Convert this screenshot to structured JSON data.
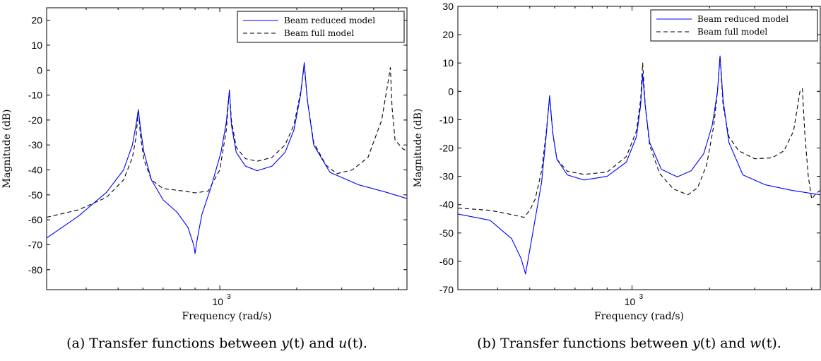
{
  "chart_data": [
    {
      "type": "line",
      "caption": {
        "prefix": "(a) Transfer functions between ",
        "var1": "y",
        "mid": "(t) and ",
        "var2": "u",
        "suffix": "(t)."
      },
      "xlabel": "Frequency (rad/s)",
      "ylabel": "Magnitude (dB)",
      "xscale": "log",
      "xlim": [
        210,
        5400
      ],
      "ylim": [
        -88,
        25
      ],
      "xticks": [
        {
          "value": 1000,
          "label": "10",
          "exponent": "3"
        }
      ],
      "yticks": [
        -80,
        -70,
        -60,
        -50,
        -40,
        -30,
        -20,
        -10,
        0,
        10,
        20
      ],
      "legend_position": "top-right",
      "series": [
        {
          "name": "Beam reduced model",
          "color": "#0000ff",
          "dash": "solid",
          "points": [
            [
              210,
              -67.3
            ],
            [
              280,
              -58.5
            ],
            [
              360,
              -49
            ],
            [
              420,
              -40
            ],
            [
              455,
              -30
            ],
            [
              470,
              -22
            ],
            [
              480,
              -15.8
            ],
            [
              490,
              -24
            ],
            [
              505,
              -33
            ],
            [
              540,
              -44
            ],
            [
              600,
              -52
            ],
            [
              680,
              -57
            ],
            [
              750,
              -63
            ],
            [
              790,
              -70
            ],
            [
              800,
              -73.5
            ],
            [
              812,
              -69
            ],
            [
              850,
              -58
            ],
            [
              930,
              -46
            ],
            [
              1010,
              -33
            ],
            [
              1060,
              -21
            ],
            [
              1090,
              -8
            ],
            [
              1110,
              -22
            ],
            [
              1160,
              -33
            ],
            [
              1260,
              -38.5
            ],
            [
              1400,
              -40.3
            ],
            [
              1600,
              -38.5
            ],
            [
              1800,
              -33
            ],
            [
              1950,
              -24
            ],
            [
              2070,
              -10
            ],
            [
              2140,
              3
            ],
            [
              2200,
              -12
            ],
            [
              2330,
              -30
            ],
            [
              2700,
              -41
            ],
            [
              3500,
              -46
            ],
            [
              4500,
              -49
            ],
            [
              5400,
              -51.5
            ]
          ]
        },
        {
          "name": "Beam full model",
          "color": "#000000",
          "dash": "dashed",
          "points": [
            [
              210,
              -59
            ],
            [
              280,
              -56
            ],
            [
              360,
              -51
            ],
            [
              420,
              -44
            ],
            [
              455,
              -35
            ],
            [
              470,
              -27
            ],
            [
              480,
              -16
            ],
            [
              490,
              -27
            ],
            [
              505,
              -36
            ],
            [
              540,
              -44
            ],
            [
              600,
              -47.5
            ],
            [
              700,
              -48.3
            ],
            [
              800,
              -49.2
            ],
            [
              900,
              -48.5
            ],
            [
              1000,
              -40
            ],
            [
              1060,
              -24
            ],
            [
              1090,
              -8
            ],
            [
              1110,
              -20
            ],
            [
              1160,
              -31
            ],
            [
              1260,
              -35.5
            ],
            [
              1400,
              -36.5
            ],
            [
              1600,
              -35
            ],
            [
              1800,
              -30
            ],
            [
              1950,
              -22
            ],
            [
              2070,
              -9
            ],
            [
              2140,
              2
            ],
            [
              2200,
              -12
            ],
            [
              2330,
              -29
            ],
            [
              2600,
              -38
            ],
            [
              2870,
              -41.5
            ],
            [
              3300,
              -40
            ],
            [
              3800,
              -35
            ],
            [
              4300,
              -20
            ],
            [
              4550,
              -5
            ],
            [
              4650,
              1
            ],
            [
              4720,
              -15
            ],
            [
              4850,
              -28
            ],
            [
              5200,
              -31.5
            ],
            [
              5400,
              -32.5
            ]
          ]
        }
      ]
    },
    {
      "type": "line",
      "caption": {
        "prefix": "(b) Transfer functions between ",
        "var1": "y",
        "mid": "(t) and ",
        "var2": "w",
        "suffix": "(t)."
      },
      "xlabel": "Frequency (rad/s)",
      "ylabel": "Magnitude (dB)",
      "xscale": "log",
      "xlim": [
        210,
        5400
      ],
      "ylim": [
        -70,
        30
      ],
      "xticks": [
        {
          "value": 1000,
          "label": "10",
          "exponent": "3"
        }
      ],
      "yticks": [
        -70,
        -60,
        -50,
        -40,
        -30,
        -20,
        -10,
        0,
        10,
        20,
        30
      ],
      "legend_position": "top-right",
      "series": [
        {
          "name": "Beam reduced model",
          "color": "#0000ff",
          "dash": "solid",
          "points": [
            [
              210,
              -43.3
            ],
            [
              280,
              -45.5
            ],
            [
              340,
              -52
            ],
            [
              370,
              -59
            ],
            [
              385,
              -64.5
            ],
            [
              400,
              -56
            ],
            [
              420,
              -45
            ],
            [
              445,
              -32
            ],
            [
              463,
              -16
            ],
            [
              478,
              -1.5
            ],
            [
              492,
              -15
            ],
            [
              510,
              -24
            ],
            [
              560,
              -29.5
            ],
            [
              650,
              -31.3
            ],
            [
              800,
              -30
            ],
            [
              950,
              -25
            ],
            [
              1040,
              -16
            ],
            [
              1080,
              -5
            ],
            [
              1100,
              6
            ],
            [
              1125,
              -5
            ],
            [
              1170,
              -18
            ],
            [
              1300,
              -27.5
            ],
            [
              1500,
              -30.2
            ],
            [
              1700,
              -28
            ],
            [
              1900,
              -22
            ],
            [
              2050,
              -12
            ],
            [
              2150,
              0
            ],
            [
              2200,
              12.5
            ],
            [
              2260,
              -3
            ],
            [
              2380,
              -18
            ],
            [
              2700,
              -29.5
            ],
            [
              3300,
              -33
            ],
            [
              4200,
              -35
            ],
            [
              5400,
              -36.5
            ]
          ]
        },
        {
          "name": "Beam full model",
          "color": "#000000",
          "dash": "dashed",
          "points": [
            [
              210,
              -41.2
            ],
            [
              280,
              -42
            ],
            [
              340,
              -43.5
            ],
            [
              380,
              -44.5
            ],
            [
              400,
              -42
            ],
            [
              420,
              -38
            ],
            [
              445,
              -28
            ],
            [
              463,
              -15
            ],
            [
              478,
              -2
            ],
            [
              492,
              -15
            ],
            [
              510,
              -24
            ],
            [
              560,
              -28.2
            ],
            [
              650,
              -29.3
            ],
            [
              800,
              -28.5
            ],
            [
              950,
              -23
            ],
            [
              1040,
              -14
            ],
            [
              1080,
              -3
            ],
            [
              1100,
              10
            ],
            [
              1125,
              -5
            ],
            [
              1170,
              -19
            ],
            [
              1280,
              -29
            ],
            [
              1450,
              -34.5
            ],
            [
              1650,
              -36.5
            ],
            [
              1800,
              -34
            ],
            [
              1950,
              -26
            ],
            [
              2080,
              -12
            ],
            [
              2150,
              0
            ],
            [
              2200,
              12.5
            ],
            [
              2260,
              -5
            ],
            [
              2380,
              -16
            ],
            [
              2600,
              -21
            ],
            [
              3000,
              -23.8
            ],
            [
              3500,
              -23.5
            ],
            [
              3900,
              -21
            ],
            [
              4250,
              -14
            ],
            [
              4500,
              0
            ],
            [
              4600,
              1
            ],
            [
              4700,
              -15
            ],
            [
              4850,
              -30
            ],
            [
              5000,
              -38
            ],
            [
              5200,
              -36
            ],
            [
              5400,
              -35
            ]
          ]
        }
      ]
    }
  ]
}
